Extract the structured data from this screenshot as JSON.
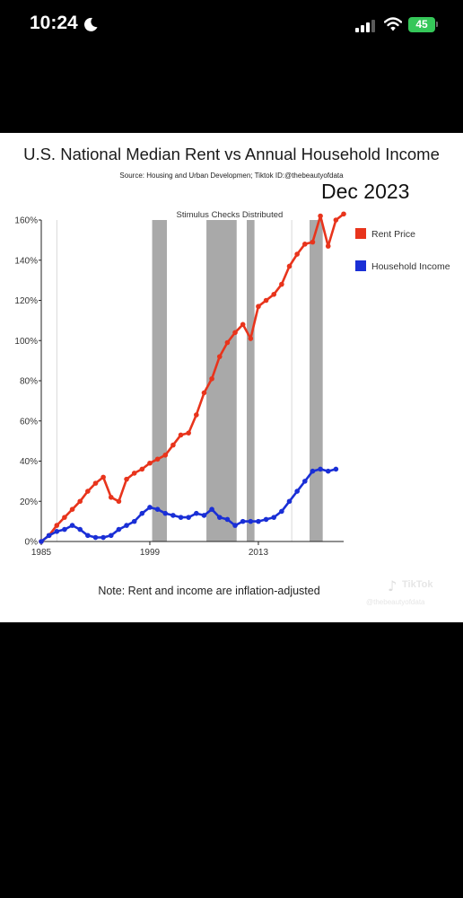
{
  "status_bar": {
    "time": "10:24",
    "battery": "45"
  },
  "video": {
    "date_label": "Dec 2023",
    "note": "Note: Rent and income are inflation-adjusted",
    "watermark": {
      "app": "TikTok",
      "handle": "@thebeautyofdata"
    }
  },
  "chart_data": {
    "type": "line",
    "title": "U.S. National Median Rent vs Annual Household Income",
    "subtitle": "Source: Housing and Urban Developmen; Tiktok ID:@thebeautyofdata",
    "annotation": "Stimulus Checks Distributed",
    "xlabel": "",
    "ylabel": "",
    "xlim": [
      1985,
      2024
    ],
    "ylim": [
      0,
      160
    ],
    "x_ticks": [
      {
        "value": 1985,
        "label": "1985"
      },
      {
        "value": 1999,
        "label": "1999"
      },
      {
        "value": 2013,
        "label": "2013"
      }
    ],
    "y_ticks": [
      {
        "value": 0,
        "label": "0%"
      },
      {
        "value": 20,
        "label": "20%"
      },
      {
        "value": 40,
        "label": "40%"
      },
      {
        "value": 60,
        "label": "60%"
      },
      {
        "value": 80,
        "label": "80%"
      },
      {
        "value": 100,
        "label": "100%"
      },
      {
        "value": 120,
        "label": "120%"
      },
      {
        "value": 140,
        "label": "140%"
      },
      {
        "value": 160,
        "label": "160%"
      }
    ],
    "shaded_periods": [
      [
        1999.3,
        2001.2
      ],
      [
        2006.3,
        2010.2
      ],
      [
        2011.5,
        2012.5
      ],
      [
        2019.6,
        2021.3
      ]
    ],
    "reference_lines": [
      1987,
      2017.3
    ],
    "legend_position": "right",
    "series": [
      {
        "name": "Rent Price",
        "color": "#e8341c",
        "x": [
          1985,
          1986,
          1987,
          1988,
          1989,
          1990,
          1991,
          1992,
          1993,
          1994,
          1995,
          1996,
          1997,
          1998,
          1999,
          2000,
          2001,
          2002,
          2003,
          2004,
          2005,
          2006,
          2007,
          2008,
          2009,
          2010,
          2011,
          2012,
          2013,
          2014,
          2015,
          2016,
          2017,
          2018,
          2019,
          2020,
          2021,
          2022,
          2023,
          2024
        ],
        "values": [
          0,
          3,
          8,
          12,
          16,
          20,
          25,
          29,
          32,
          22,
          20,
          31,
          34,
          36,
          39,
          41,
          43,
          48,
          53,
          54,
          63,
          74,
          81,
          92,
          99,
          104,
          108,
          101,
          117,
          120,
          123,
          128,
          137,
          143,
          148,
          149,
          162,
          147,
          160,
          163
        ]
      },
      {
        "name": "Household Income",
        "color": "#1a2fd6",
        "x": [
          1985,
          1986,
          1987,
          1988,
          1989,
          1990,
          1991,
          1992,
          1993,
          1994,
          1995,
          1996,
          1997,
          1998,
          1999,
          2000,
          2001,
          2002,
          2003,
          2004,
          2005,
          2006,
          2007,
          2008,
          2009,
          2010,
          2011,
          2012,
          2013,
          2014,
          2015,
          2016,
          2017,
          2018,
          2019,
          2020,
          2021,
          2022,
          2023
        ],
        "values": [
          0,
          3,
          5,
          6,
          8,
          6,
          3,
          2,
          2,
          3,
          6,
          8,
          10,
          14,
          17,
          16,
          14,
          13,
          12,
          12,
          14,
          13,
          16,
          12,
          11,
          8,
          10,
          10,
          10,
          11,
          12,
          15,
          20,
          25,
          30,
          35,
          36,
          35,
          36
        ]
      }
    ]
  }
}
